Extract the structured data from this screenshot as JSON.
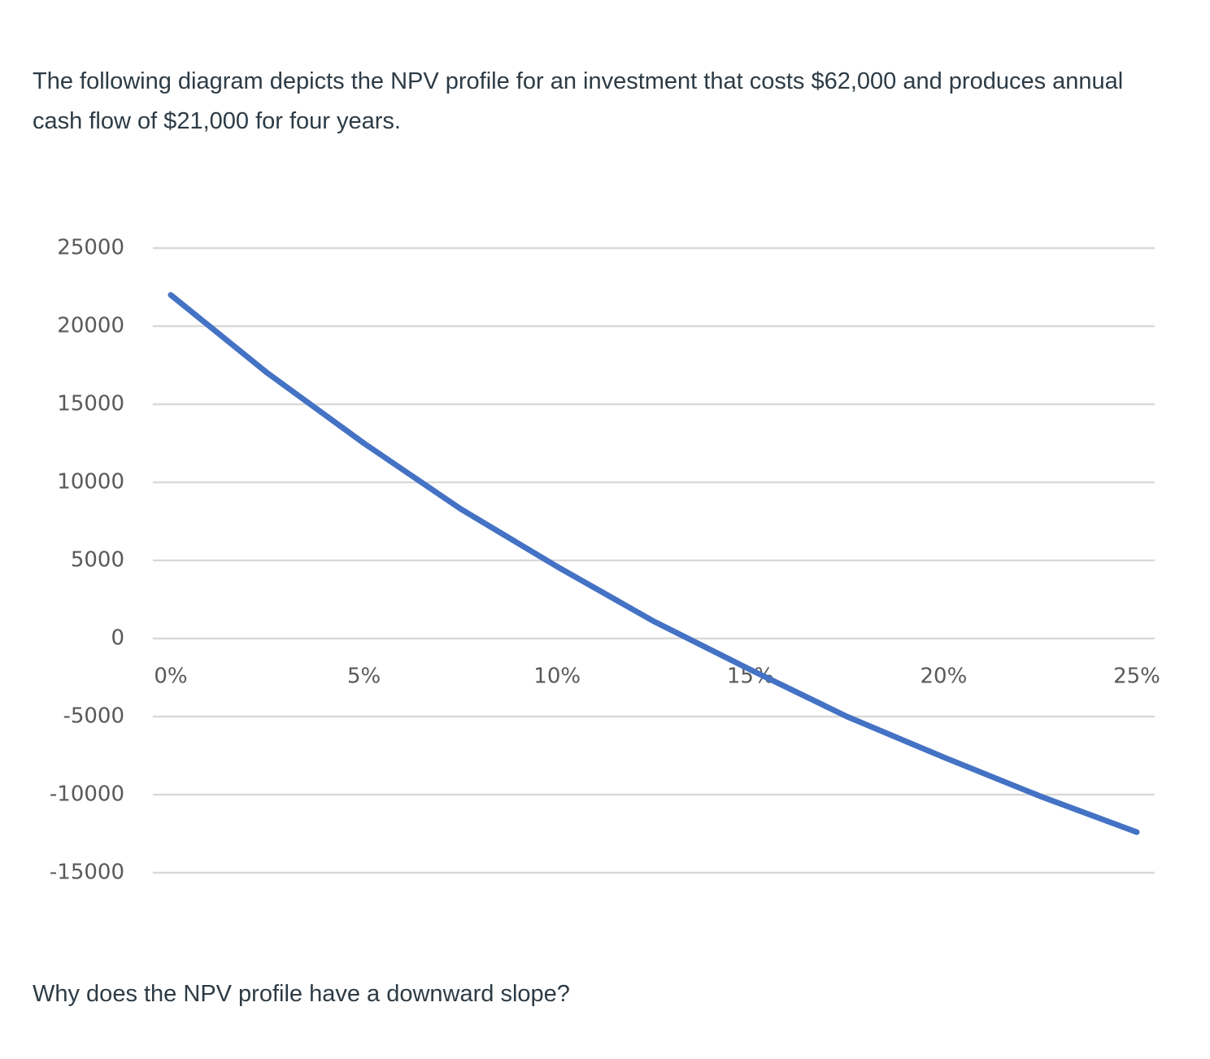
{
  "text": {
    "intro": "The following diagram depicts the NPV profile for an investment that costs $62,000 and produces annual cash flow of $21,000 for four years.",
    "question": "Why does the NPV profile have a downward slope?"
  },
  "chart_data": {
    "type": "line",
    "x": [
      0,
      2.5,
      5,
      7.5,
      10,
      12.5,
      15,
      17.5,
      20,
      22.5,
      25
    ],
    "series": [
      {
        "color": "#4472c4",
        "values": [
          22000,
          17000,
          12500,
          8300,
          4600,
          1100,
          -2000,
          -5000,
          -7600,
          -10100,
          -12400
        ]
      }
    ],
    "xlim": [
      0,
      25
    ],
    "xticks": [
      {
        "value": 0,
        "label": "0%"
      },
      {
        "value": 5,
        "label": "5%"
      },
      {
        "value": 10,
        "label": "10%"
      },
      {
        "value": 15,
        "label": "15%"
      },
      {
        "value": 20,
        "label": "20%"
      },
      {
        "value": 25,
        "label": "25%"
      }
    ],
    "ylim": [
      -15000,
      25000
    ],
    "yticks": [
      -15000,
      -10000,
      -5000,
      0,
      5000,
      10000,
      15000,
      20000,
      25000
    ],
    "grid": true
  }
}
